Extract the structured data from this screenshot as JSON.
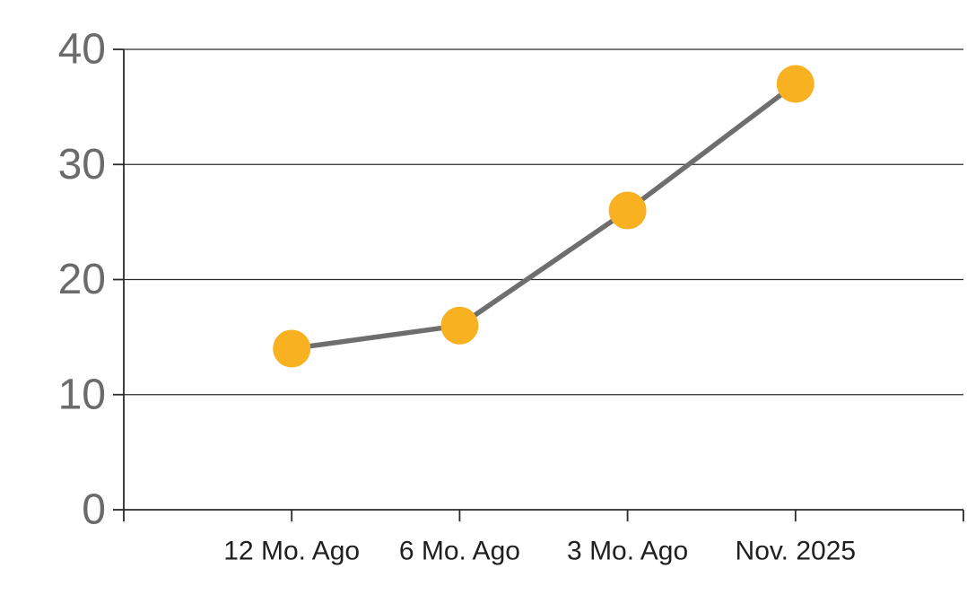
{
  "chart_data": {
    "type": "line",
    "title": "",
    "xlabel": "",
    "ylabel": "",
    "categories": [
      "12 Mo. Ago",
      "6 Mo. Ago",
      "3 Mo. Ago",
      "Nov. 2025"
    ],
    "series": [
      {
        "name": "trend",
        "values": [
          14,
          16,
          26,
          37
        ]
      }
    ],
    "ylim": [
      0,
      40
    ],
    "yticks": [
      0,
      10,
      20,
      30,
      40
    ],
    "grid": true,
    "legend": false,
    "legend_position": "none",
    "colors": {
      "marker": "#F8B121",
      "line": "#6E6E6E",
      "grid": "#2b2b2b",
      "axis": "#2b2b2b",
      "y_tick_label": "#6B6B6B",
      "x_tick_label": "#1F1F1F",
      "background": "#FFFFFF"
    }
  }
}
